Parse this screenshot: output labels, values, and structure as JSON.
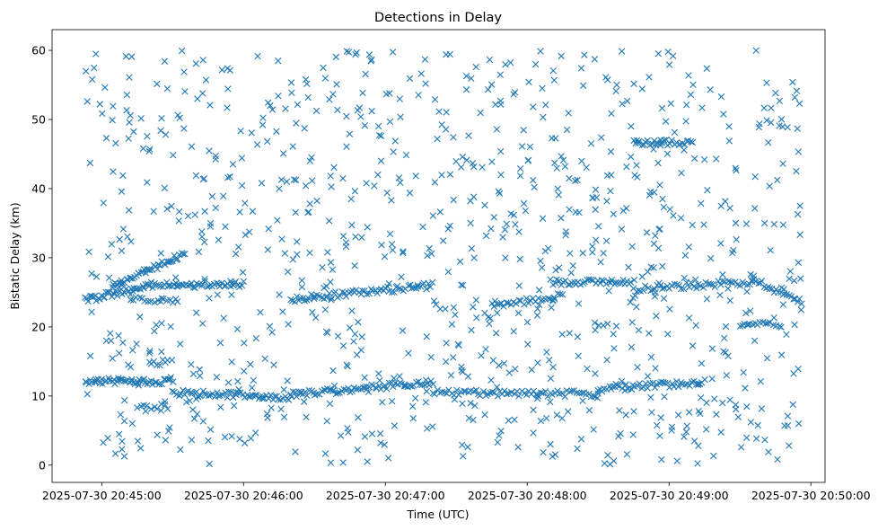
{
  "chart_data": {
    "type": "scatter",
    "title": "Detections in Delay",
    "xlabel": "Time (UTC)",
    "ylabel": "Bistatic Delay (km)",
    "marker": "x",
    "color": "#1f77b4",
    "grid": false,
    "xlim": [
      "2025-07-30 20:44:39",
      "2025-07-30 20:50:06"
    ],
    "ylim": [
      -2.5,
      63
    ],
    "x_ticks": [
      "2025-07-30 20:45:00",
      "2025-07-30 20:46:00",
      "2025-07-30 20:47:00",
      "2025-07-30 20:48:00",
      "2025-07-30 20:49:00",
      "2025-07-30 20:50:00"
    ],
    "y_ticks": [
      "0",
      "10",
      "20",
      "30",
      "40",
      "50",
      "60"
    ],
    "time_range": [
      "2025-07-30 20:44:53",
      "2025-07-30 20:49:56"
    ],
    "tracks": [
      {
        "start": [
          "2025-07-30 20:44:53",
          23.8
        ],
        "end": [
          "2025-07-30 20:45:20",
          26.0
        ],
        "points": 40
      },
      {
        "start": [
          "2025-07-30 20:45:05",
          26.0
        ],
        "end": [
          "2025-07-30 20:45:35",
          30.5
        ],
        "points": 45
      },
      {
        "start": [
          "2025-07-30 20:45:20",
          26.0
        ],
        "end": [
          "2025-07-30 20:46:00",
          26.2
        ],
        "points": 50
      },
      {
        "start": [
          "2025-07-30 20:44:53",
          12.2
        ],
        "end": [
          "2025-07-30 20:45:30",
          12.0
        ],
        "points": 50
      },
      {
        "start": [
          "2025-07-30 20:45:30",
          10.5
        ],
        "end": [
          "2025-07-30 20:46:20",
          9.8
        ],
        "points": 60
      },
      {
        "start": [
          "2025-07-30 20:46:20",
          10.2
        ],
        "end": [
          "2025-07-30 20:47:20",
          12.0
        ],
        "points": 70
      },
      {
        "start": [
          "2025-07-30 20:47:20",
          10.5
        ],
        "end": [
          "2025-07-30 20:48:30",
          10.3
        ],
        "points": 70
      },
      {
        "start": [
          "2025-07-30 20:48:30",
          11.0
        ],
        "end": [
          "2025-07-30 20:49:15",
          12.0
        ],
        "points": 50
      },
      {
        "start": [
          "2025-07-30 20:46:20",
          24.0
        ],
        "end": [
          "2025-07-30 20:47:20",
          26.0
        ],
        "points": 70
      },
      {
        "start": [
          "2025-07-30 20:47:45",
          23.0
        ],
        "end": [
          "2025-07-30 20:48:15",
          24.5
        ],
        "points": 30
      },
      {
        "start": [
          "2025-07-30 20:48:10",
          26.5
        ],
        "end": [
          "2025-07-30 20:48:45",
          26.5
        ],
        "points": 40
      },
      {
        "start": [
          "2025-07-30 20:48:45",
          25.5
        ],
        "end": [
          "2025-07-30 20:49:35",
          26.5
        ],
        "points": 50
      },
      {
        "start": [
          "2025-07-30 20:49:35",
          27.0
        ],
        "end": [
          "2025-07-30 20:49:56",
          23.5
        ],
        "points": 25
      },
      {
        "start": [
          "2025-07-30 20:48:45",
          46.7
        ],
        "end": [
          "2025-07-30 20:49:10",
          46.7
        ],
        "points": 30
      },
      {
        "start": [
          "2025-07-30 20:49:30",
          20.5
        ],
        "end": [
          "2025-07-30 20:49:45",
          20.5
        ],
        "points": 15
      },
      {
        "start": [
          "2025-07-30 20:45:20",
          14.5
        ],
        "end": [
          "2025-07-30 20:45:28",
          15.0
        ],
        "points": 8
      },
      {
        "start": [
          "2025-07-30 20:45:15",
          8.5
        ],
        "end": [
          "2025-07-30 20:45:28",
          8.5
        ],
        "points": 10
      },
      {
        "start": [
          "2025-07-30 20:45:12",
          24.0
        ],
        "end": [
          "2025-07-30 20:45:30",
          23.5
        ],
        "points": 15
      }
    ],
    "scatter_points": 950
  }
}
